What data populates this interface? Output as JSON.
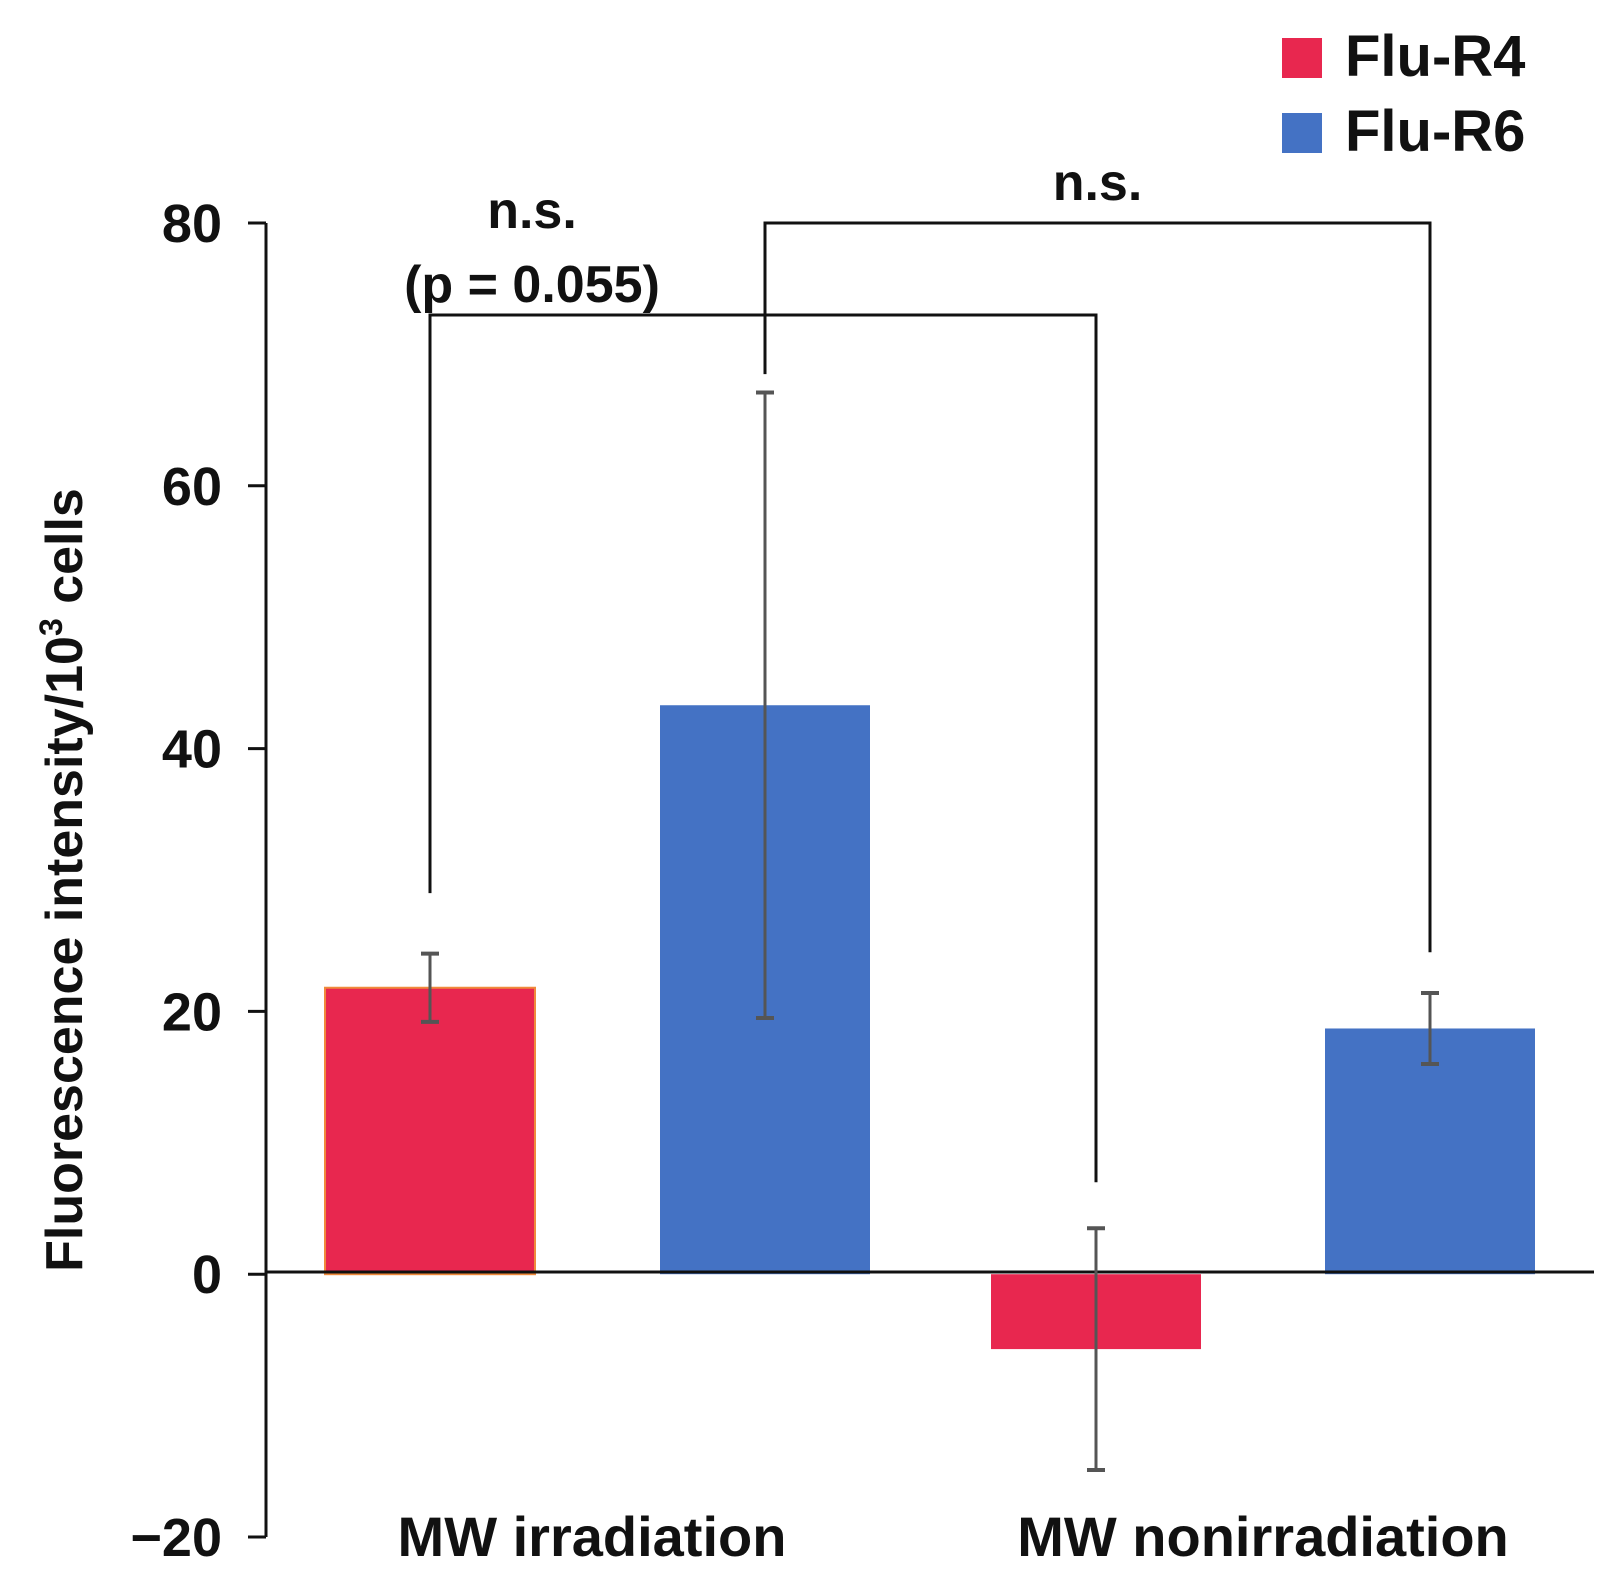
{
  "chart_data": {
    "type": "bar",
    "title": "",
    "xlabel": "",
    "ylabel": "Fluorescence intensity/10",
    "ylabel_superscript": "3",
    "ylabel_suffix": " cells",
    "ylim": [
      -20,
      80
    ],
    "yticks": [
      -20,
      0,
      20,
      40,
      60,
      80
    ],
    "ytick_labels": [
      "−20",
      "0",
      "20",
      "40",
      "60",
      "80"
    ],
    "grid": false,
    "legend_position": "top-right",
    "categories": [
      "MW irradiation",
      "MW nonirradiation"
    ],
    "series": [
      {
        "name": "Flu-R4",
        "color": "#E8274F",
        "values": [
          21.8,
          -5.7
        ],
        "errors": [
          2.6,
          9.2
        ]
      },
      {
        "name": "Flu-R6",
        "color": "#4472C4",
        "values": [
          43.3,
          18.7
        ],
        "errors": [
          23.8,
          2.7
        ]
      }
    ],
    "annotations": [
      {
        "lines": [
          "n.s.",
          "(p = 0.055)"
        ],
        "from": {
          "category": 0,
          "series": 0
        },
        "to": {
          "category": 1,
          "series": 0
        },
        "bracket_y": 73,
        "left_end": 29,
        "right_end": 7
      },
      {
        "lines": [
          "n.s."
        ],
        "from": {
          "category": 0,
          "series": 1
        },
        "to": {
          "category": 1,
          "series": 1
        },
        "bracket_y": 80,
        "left_end": 68.5,
        "right_end": 24.5
      }
    ]
  }
}
